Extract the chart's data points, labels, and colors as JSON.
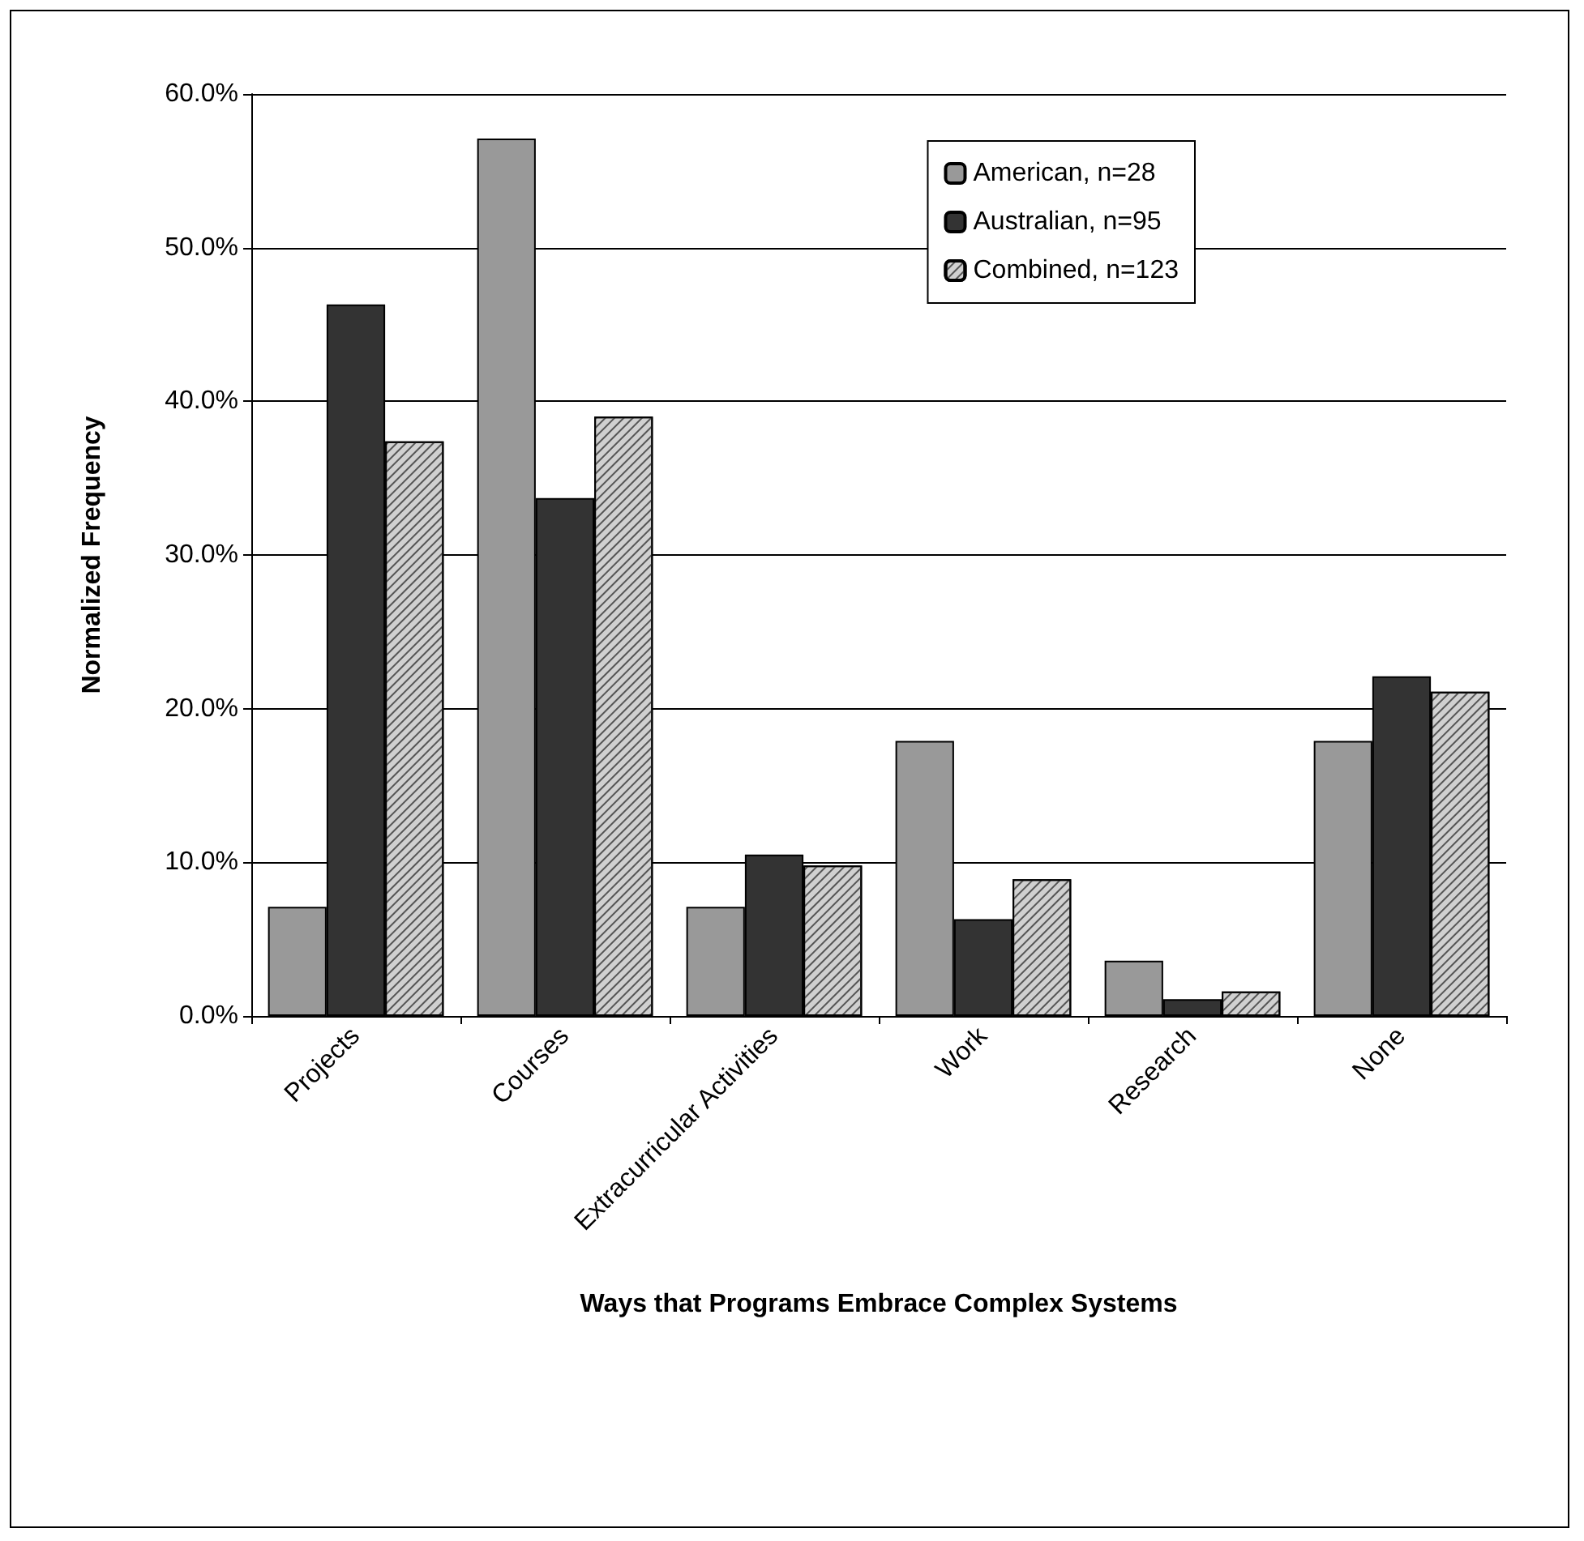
{
  "chart_data": {
    "type": "bar",
    "xlabel": "Ways that Programs Embrace Complex Systems",
    "ylabel": "Normalized Frequency",
    "categories": [
      "Projects",
      "Courses",
      "Extracurricular Activities",
      "Work",
      "Research",
      "None"
    ],
    "series": [
      {
        "name": "American, n=28",
        "color": "#999999",
        "values": [
          7.1,
          57.1,
          7.1,
          17.9,
          3.6,
          17.9
        ]
      },
      {
        "name": "Australian, n=95",
        "color": "#333333",
        "values": [
          46.3,
          33.7,
          10.5,
          6.3,
          1.1,
          22.1
        ]
      },
      {
        "name": "Combined, n=123",
        "color": "#d0d0d0",
        "values": [
          37.4,
          39.0,
          9.8,
          8.9,
          1.6,
          21.1
        ]
      }
    ],
    "ylim": [
      0,
      60
    ],
    "yticks": [
      {
        "value": 0,
        "label": "0.0%"
      },
      {
        "value": 10,
        "label": "10.0%"
      },
      {
        "value": 20,
        "label": "20.0%"
      },
      {
        "value": 30,
        "label": "30.0%"
      },
      {
        "value": 40,
        "label": "40.0%"
      },
      {
        "value": 50,
        "label": "50.0%"
      },
      {
        "value": 60,
        "label": "60.0%"
      }
    ],
    "grid": "y",
    "legend": "top right"
  }
}
